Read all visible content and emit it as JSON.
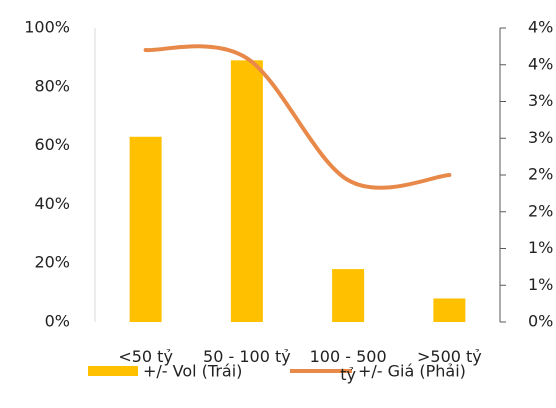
{
  "chart_data": {
    "type": "bar_line",
    "categories": [
      "<50 tỷ",
      "50 - 100 tỷ",
      "100 - 500 tỷ",
      ">500 tỷ"
    ],
    "series": [
      {
        "name": "+/- Vol (Trái)",
        "type": "bar",
        "color": "#ffc000",
        "values": [
          63,
          89,
          18,
          8
        ]
      },
      {
        "name": "+/- Giá (Phải)",
        "type": "line",
        "axis": "y2",
        "color": "#e8894a",
        "values": [
          3.7,
          3.59,
          1.93,
          2.0
        ]
      }
    ],
    "ylim": [
      0,
      100
    ],
    "yticks": [
      {
        "value": 0,
        "label": "0%"
      },
      {
        "value": 20,
        "label": "20%"
      },
      {
        "value": 40,
        "label": "40%"
      },
      {
        "value": 60,
        "label": "60%"
      },
      {
        "value": 80,
        "label": "80%"
      },
      {
        "value": 100,
        "label": "100%"
      }
    ],
    "y2lim": [
      0,
      4
    ],
    "y2ticks": [
      {
        "value": 0,
        "label": "0%"
      },
      {
        "value": 0.5,
        "label": "1%"
      },
      {
        "value": 1,
        "label": "1%"
      },
      {
        "value": 1.5,
        "label": "2%"
      },
      {
        "value": 2,
        "label": "2%"
      },
      {
        "value": 2.5,
        "label": "3%"
      },
      {
        "value": 3,
        "label": "3%"
      },
      {
        "value": 3.5,
        "label": "4%"
      },
      {
        "value": 4,
        "label": "4%"
      }
    ],
    "legend": "bottom"
  }
}
